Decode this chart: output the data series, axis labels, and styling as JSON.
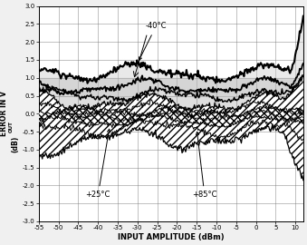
{
  "xlim": [
    -55,
    12
  ],
  "ylim": [
    -3.0,
    3.0
  ],
  "xticks": [
    -55,
    -50,
    -45,
    -40,
    -35,
    -30,
    -25,
    -20,
    -15,
    -10,
    -5,
    0,
    5,
    10
  ],
  "yticks": [
    -3.0,
    -2.5,
    -2.0,
    -1.5,
    -1.0,
    -0.5,
    0.0,
    0.5,
    1.0,
    1.5,
    2.0,
    2.5,
    3.0
  ],
  "xlabel": "INPUT AMPLITUDE (dBm)",
  "ylabel": "ERROR IN VOUT (dB)",
  "shade_ymin": 0.0,
  "shade_ymax": 1.0,
  "shade_color": "#d0d0d0",
  "annotation_40C": "-40°C",
  "annotation_25C": "+25°C",
  "annotation_85C": "+85°C"
}
